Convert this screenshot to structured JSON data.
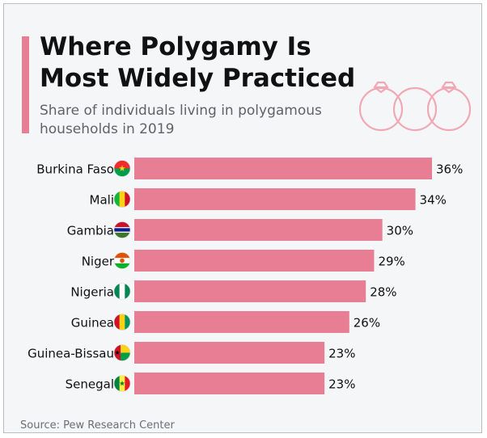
{
  "header": {
    "title": "Where Polygamy Is Most Widely Practiced",
    "subtitle": "Share of individuals living in polygamous households in 2019"
  },
  "source": "Source: Pew Research Center",
  "decoration": {
    "icon": "wedding-rings-icon"
  },
  "colors": {
    "bar": "#e87e93",
    "accent": "#e87e93",
    "text": "#111111",
    "muted": "#5f6368",
    "background": "#f4f6f8"
  },
  "chart_data": {
    "type": "bar",
    "orientation": "horizontal",
    "categories": [
      "Burkina Faso",
      "Mali",
      "Gambia",
      "Niger",
      "Nigeria",
      "Guinea",
      "Guinea-Bissau",
      "Senegal"
    ],
    "values": [
      36,
      34,
      30,
      29,
      28,
      26,
      23,
      23
    ],
    "value_labels": [
      "36%",
      "34%",
      "30%",
      "29%",
      "28%",
      "26%",
      "23%",
      "23%"
    ],
    "unit": "%",
    "flags": [
      "burkina-faso-flag-icon",
      "mali-flag-icon",
      "gambia-flag-icon",
      "niger-flag-icon",
      "nigeria-flag-icon",
      "guinea-flag-icon",
      "guinea-bissau-flag-icon",
      "senegal-flag-icon"
    ],
    "title": "Where Polygamy Is Most Widely Practiced",
    "xlabel": "",
    "ylabel": "",
    "xlim": [
      0,
      36
    ],
    "grid": false,
    "legend": "none"
  }
}
